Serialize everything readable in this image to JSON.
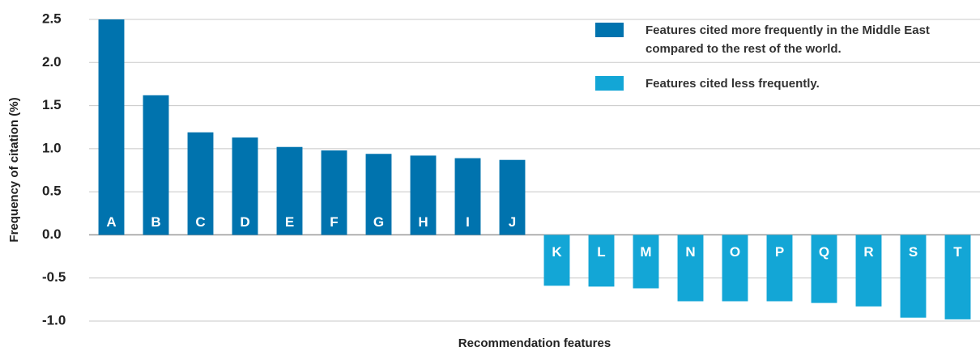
{
  "chart_data": {
    "type": "bar",
    "categories": [
      "A",
      "B",
      "C",
      "D",
      "E",
      "F",
      "G",
      "H",
      "I",
      "J",
      "K",
      "L",
      "M",
      "N",
      "O",
      "P",
      "Q",
      "R",
      "S",
      "T"
    ],
    "series": [
      {
        "name": "Features cited more frequently in the Middle East compared to the rest of the world.",
        "color": "#0073ae",
        "values": [
          2.5,
          1.62,
          1.19,
          1.13,
          1.02,
          0.98,
          0.94,
          0.92,
          0.89,
          0.87,
          null,
          null,
          null,
          null,
          null,
          null,
          null,
          null,
          null,
          null
        ]
      },
      {
        "name": "Features cited less frequently.",
        "color": "#13a6d6",
        "values": [
          null,
          null,
          null,
          null,
          null,
          null,
          null,
          null,
          null,
          null,
          -0.59,
          -0.6,
          -0.62,
          -0.77,
          -0.77,
          -0.77,
          -0.79,
          -0.83,
          -0.96,
          -0.98
        ]
      }
    ],
    "ylim": [
      -1,
      2.5
    ],
    "yticks": [
      {
        "value": -1,
        "label": "-1.0"
      },
      -0.5,
      {
        "value": 0,
        "label": "0.0"
      },
      0.5,
      {
        "value": 1,
        "label": "1.0"
      },
      1.5,
      {
        "value": 2,
        "label": "2.0"
      },
      2.5
    ],
    "ylabel": "Frequency of citation (%)",
    "xlabel": "Recommendation features",
    "grid": true,
    "legend": "top-right"
  }
}
